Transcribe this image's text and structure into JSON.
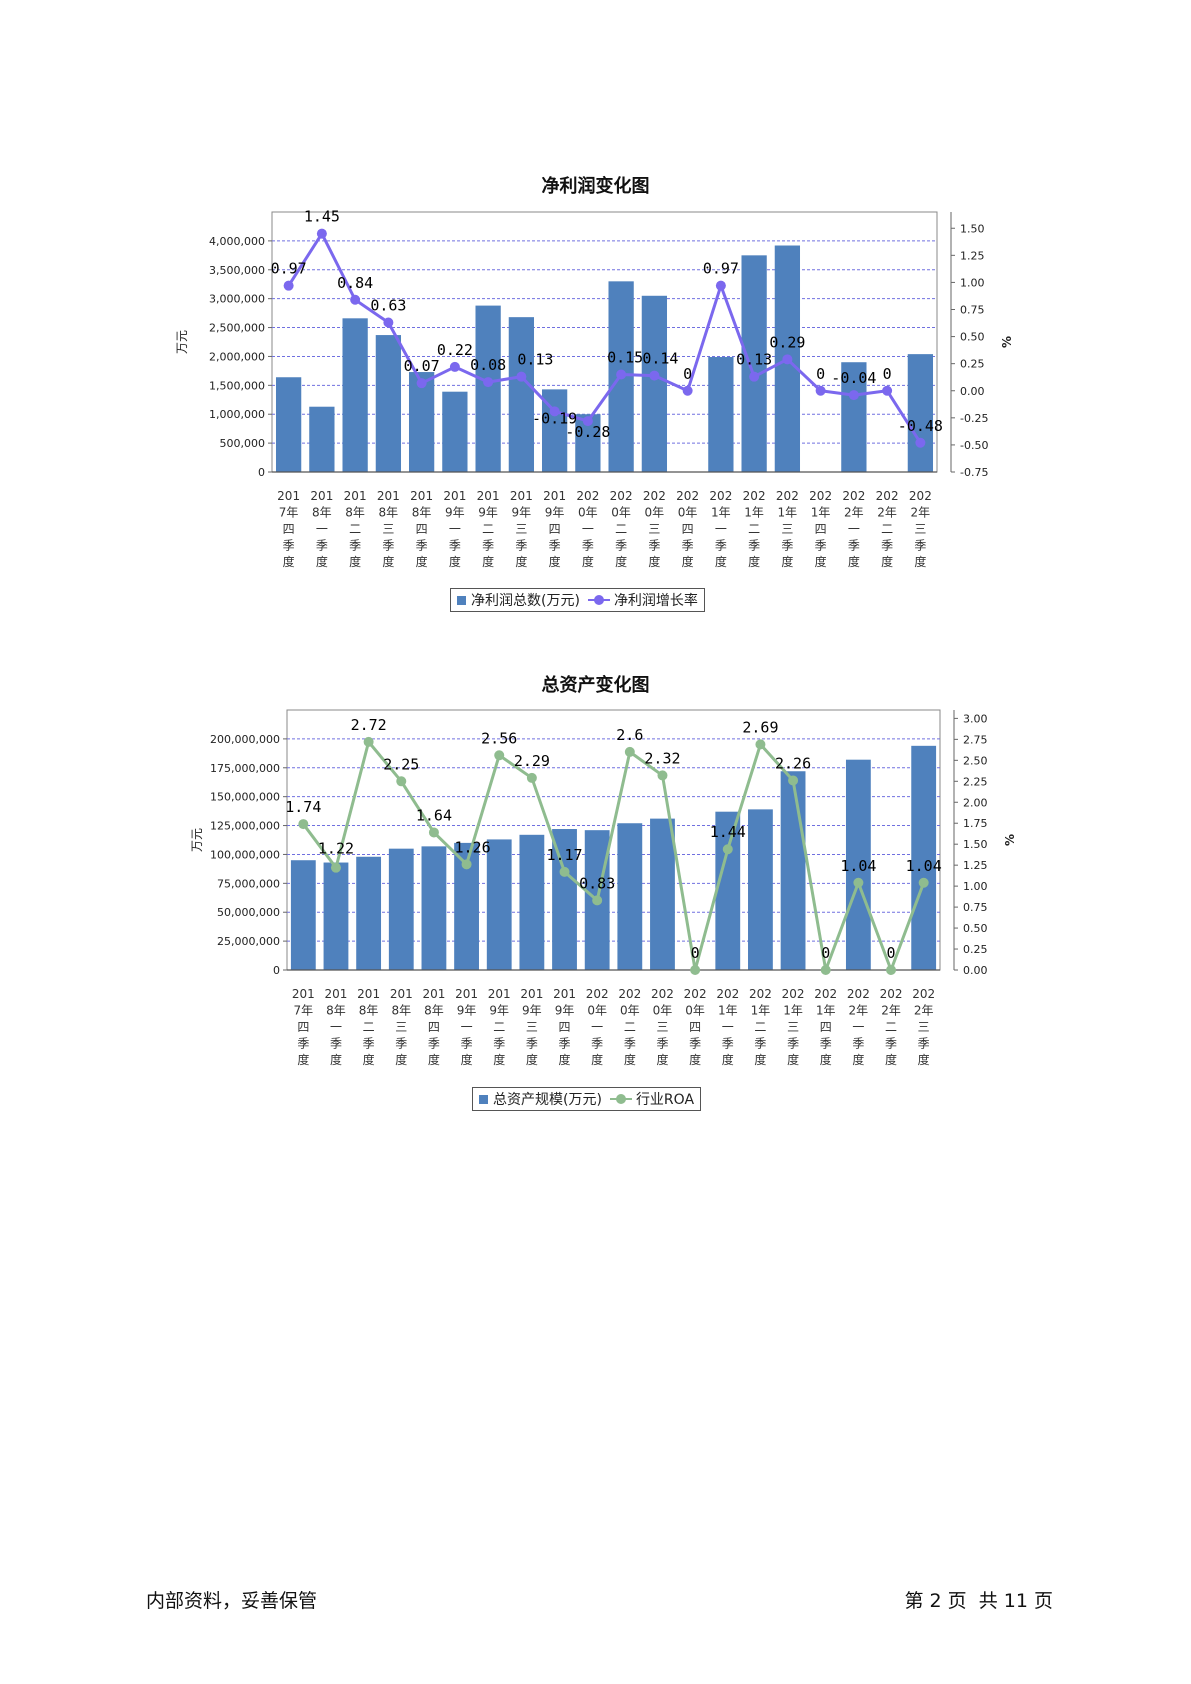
{
  "colors": {
    "bar": "#4f81bd",
    "profit_line": "#7b68ee",
    "roa_line": "#8fbc8f",
    "grid": "#7070e0"
  },
  "footer": {
    "left": "内部资料，妥善保管",
    "right": "第 2 页  共 11 页"
  },
  "chart_data": [
    {
      "type": "bar",
      "title": "净利润变化图",
      "ylabel": "万元",
      "y2label": "%",
      "ylim": [
        0,
        4500000
      ],
      "y2lim": [
        -0.75,
        1.65
      ],
      "yticks": [
        "4,000,000",
        "3,500,000",
        "3,000,000",
        "2,500,000",
        "2,000,000",
        "1,500,000",
        "1,000,000",
        "500,000",
        "0"
      ],
      "ytick_values": [
        4000000,
        3500000,
        3000000,
        2500000,
        2000000,
        1500000,
        1000000,
        500000,
        0
      ],
      "y2ticks": [
        "1.50",
        "1.25",
        "1.00",
        "0.75",
        "0.50",
        "0.25",
        "0.00",
        "-0.25",
        "-0.50",
        "-0.75"
      ],
      "y2tick_values": [
        1.5,
        1.25,
        1.0,
        0.75,
        0.5,
        0.25,
        0.0,
        -0.25,
        -0.5,
        -0.75
      ],
      "categories": [
        "2017年四季度",
        "2018年一季度",
        "2018年二季度",
        "2018年三季度",
        "2018年四季度",
        "2019年一季度",
        "2019年二季度",
        "2019年三季度",
        "2019年四季度",
        "2020年一季度",
        "2020年二季度",
        "2020年三季度",
        "2020年四季度",
        "2021年一季度",
        "2021年二季度",
        "2021年三季度",
        "2021年四季度",
        "2022年一季度",
        "2022年二季度",
        "2022年三季度"
      ],
      "category_lines": [
        [
          "201",
          "7年",
          "四",
          "季",
          "度"
        ],
        [
          "201",
          "8年",
          "一",
          "季",
          "度"
        ],
        [
          "201",
          "8年",
          "二",
          "季",
          "度"
        ],
        [
          "201",
          "8年",
          "三",
          "季",
          "度"
        ],
        [
          "201",
          "8年",
          "四",
          "季",
          "度"
        ],
        [
          "201",
          "9年",
          "一",
          "季",
          "度"
        ],
        [
          "201",
          "9年",
          "二",
          "季",
          "度"
        ],
        [
          "201",
          "9年",
          "三",
          "季",
          "度"
        ],
        [
          "201",
          "9年",
          "四",
          "季",
          "度"
        ],
        [
          "202",
          "0年",
          "一",
          "季",
          "度"
        ],
        [
          "202",
          "0年",
          "二",
          "季",
          "度"
        ],
        [
          "202",
          "0年",
          "三",
          "季",
          "度"
        ],
        [
          "202",
          "0年",
          "四",
          "季",
          "度"
        ],
        [
          "202",
          "1年",
          "一",
          "季",
          "度"
        ],
        [
          "202",
          "1年",
          "二",
          "季",
          "度"
        ],
        [
          "202",
          "1年",
          "三",
          "季",
          "度"
        ],
        [
          "202",
          "1年",
          "四",
          "季",
          "度"
        ],
        [
          "202",
          "2年",
          "一",
          "季",
          "度"
        ],
        [
          "202",
          "2年",
          "二",
          "季",
          "度"
        ],
        [
          "202",
          "2年",
          "三",
          "季",
          "度"
        ]
      ],
      "series": [
        {
          "name": "净利润总数(万元)",
          "kind": "bar",
          "axis": "left",
          "values": [
            1640000,
            1130000,
            2660000,
            2370000,
            1730000,
            1390000,
            2880000,
            2680000,
            1430000,
            1000000,
            3300000,
            3050000,
            0,
            1990000,
            3750000,
            3920000,
            0,
            1900000,
            0,
            2040000
          ]
        },
        {
          "name": "净利润增长率",
          "kind": "line",
          "axis": "right",
          "values": [
            0.97,
            1.45,
            0.84,
            0.63,
            0.07,
            0.22,
            0.08,
            0.13,
            -0.19,
            -0.28,
            0.15,
            0.14,
            0,
            0.97,
            0.13,
            0.29,
            0,
            -0.04,
            0,
            -0.48
          ],
          "labels": [
            "0.97",
            "1.45",
            "0.84",
            "0.63",
            "0.07",
            "0.22",
            "0.08",
            "0.13",
            "-0.19",
            "-0.28",
            "0.15",
            "0.14",
            "0",
            "0.97",
            "0.13",
            "0.29",
            "0",
            "-0.04",
            "0",
            "-0.48"
          ]
        }
      ],
      "grid": true,
      "legend": "bottom"
    },
    {
      "type": "bar",
      "title": "总资产变化图",
      "ylabel": "万元",
      "y2label": "%",
      "ylim": [
        0,
        225000000
      ],
      "y2lim": [
        0,
        3.1
      ],
      "yticks": [
        "200,000,000",
        "175,000,000",
        "150,000,000",
        "125,000,000",
        "100,000,000",
        "75,000,000",
        "50,000,000",
        "25,000,000",
        "0"
      ],
      "ytick_values": [
        200000000,
        175000000,
        150000000,
        125000000,
        100000000,
        75000000,
        50000000,
        25000000,
        0
      ],
      "y2ticks": [
        "3.00",
        "2.75",
        "2.50",
        "2.25",
        "2.00",
        "1.75",
        "1.50",
        "1.25",
        "1.00",
        "0.75",
        "0.50",
        "0.25",
        "0.00"
      ],
      "y2tick_values": [
        3.0,
        2.75,
        2.5,
        2.25,
        2.0,
        1.75,
        1.5,
        1.25,
        1.0,
        0.75,
        0.5,
        0.25,
        0.0
      ],
      "categories": [
        "2017年四季度",
        "2018年一季度",
        "2018年二季度",
        "2018年三季度",
        "2018年四季度",
        "2019年一季度",
        "2019年二季度",
        "2019年三季度",
        "2019年四季度",
        "2020年一季度",
        "2020年二季度",
        "2020年三季度",
        "2020年四季度",
        "2021年一季度",
        "2021年二季度",
        "2021年三季度",
        "2021年四季度",
        "2022年一季度",
        "2022年二季度",
        "2022年三季度"
      ],
      "category_lines": [
        [
          "201",
          "7年",
          "四",
          "季",
          "度"
        ],
        [
          "201",
          "8年",
          "一",
          "季",
          "度"
        ],
        [
          "201",
          "8年",
          "二",
          "季",
          "度"
        ],
        [
          "201",
          "8年",
          "三",
          "季",
          "度"
        ],
        [
          "201",
          "8年",
          "四",
          "季",
          "度"
        ],
        [
          "201",
          "9年",
          "一",
          "季",
          "度"
        ],
        [
          "201",
          "9年",
          "二",
          "季",
          "度"
        ],
        [
          "201",
          "9年",
          "三",
          "季",
          "度"
        ],
        [
          "201",
          "9年",
          "四",
          "季",
          "度"
        ],
        [
          "202",
          "0年",
          "一",
          "季",
          "度"
        ],
        [
          "202",
          "0年",
          "二",
          "季",
          "度"
        ],
        [
          "202",
          "0年",
          "三",
          "季",
          "度"
        ],
        [
          "202",
          "0年",
          "四",
          "季",
          "度"
        ],
        [
          "202",
          "1年",
          "一",
          "季",
          "度"
        ],
        [
          "202",
          "1年",
          "二",
          "季",
          "度"
        ],
        [
          "202",
          "1年",
          "三",
          "季",
          "度"
        ],
        [
          "202",
          "1年",
          "四",
          "季",
          "度"
        ],
        [
          "202",
          "2年",
          "一",
          "季",
          "度"
        ],
        [
          "202",
          "2年",
          "二",
          "季",
          "度"
        ],
        [
          "202",
          "2年",
          "三",
          "季",
          "度"
        ]
      ],
      "series": [
        {
          "name": "总资产规模(万元)",
          "kind": "bar",
          "axis": "left",
          "values": [
            95000000,
            93000000,
            98000000,
            105000000,
            107000000,
            110000000,
            113000000,
            117000000,
            122000000,
            121000000,
            127000000,
            131000000,
            0,
            137000000,
            139000000,
            172000000,
            0,
            182000000,
            0,
            194000000
          ]
        },
        {
          "name": "行业ROA",
          "kind": "line",
          "axis": "right",
          "values": [
            1.74,
            1.22,
            2.72,
            2.25,
            1.64,
            1.26,
            2.56,
            2.29,
            1.17,
            0.83,
            2.6,
            2.32,
            0,
            1.44,
            2.69,
            2.26,
            0,
            1.04,
            0,
            1.04
          ],
          "labels": [
            "1.74",
            "1.22",
            "2.72",
            "2.25",
            "1.64",
            "1.26",
            "2.56",
            "2.29",
            "1.17",
            "0.83",
            "2.6",
            "2.32",
            "0",
            "1.44",
            "2.69",
            "2.26",
            "0",
            "1.04",
            "0",
            "1.04"
          ]
        }
      ],
      "grid": true,
      "legend": "bottom"
    }
  ]
}
